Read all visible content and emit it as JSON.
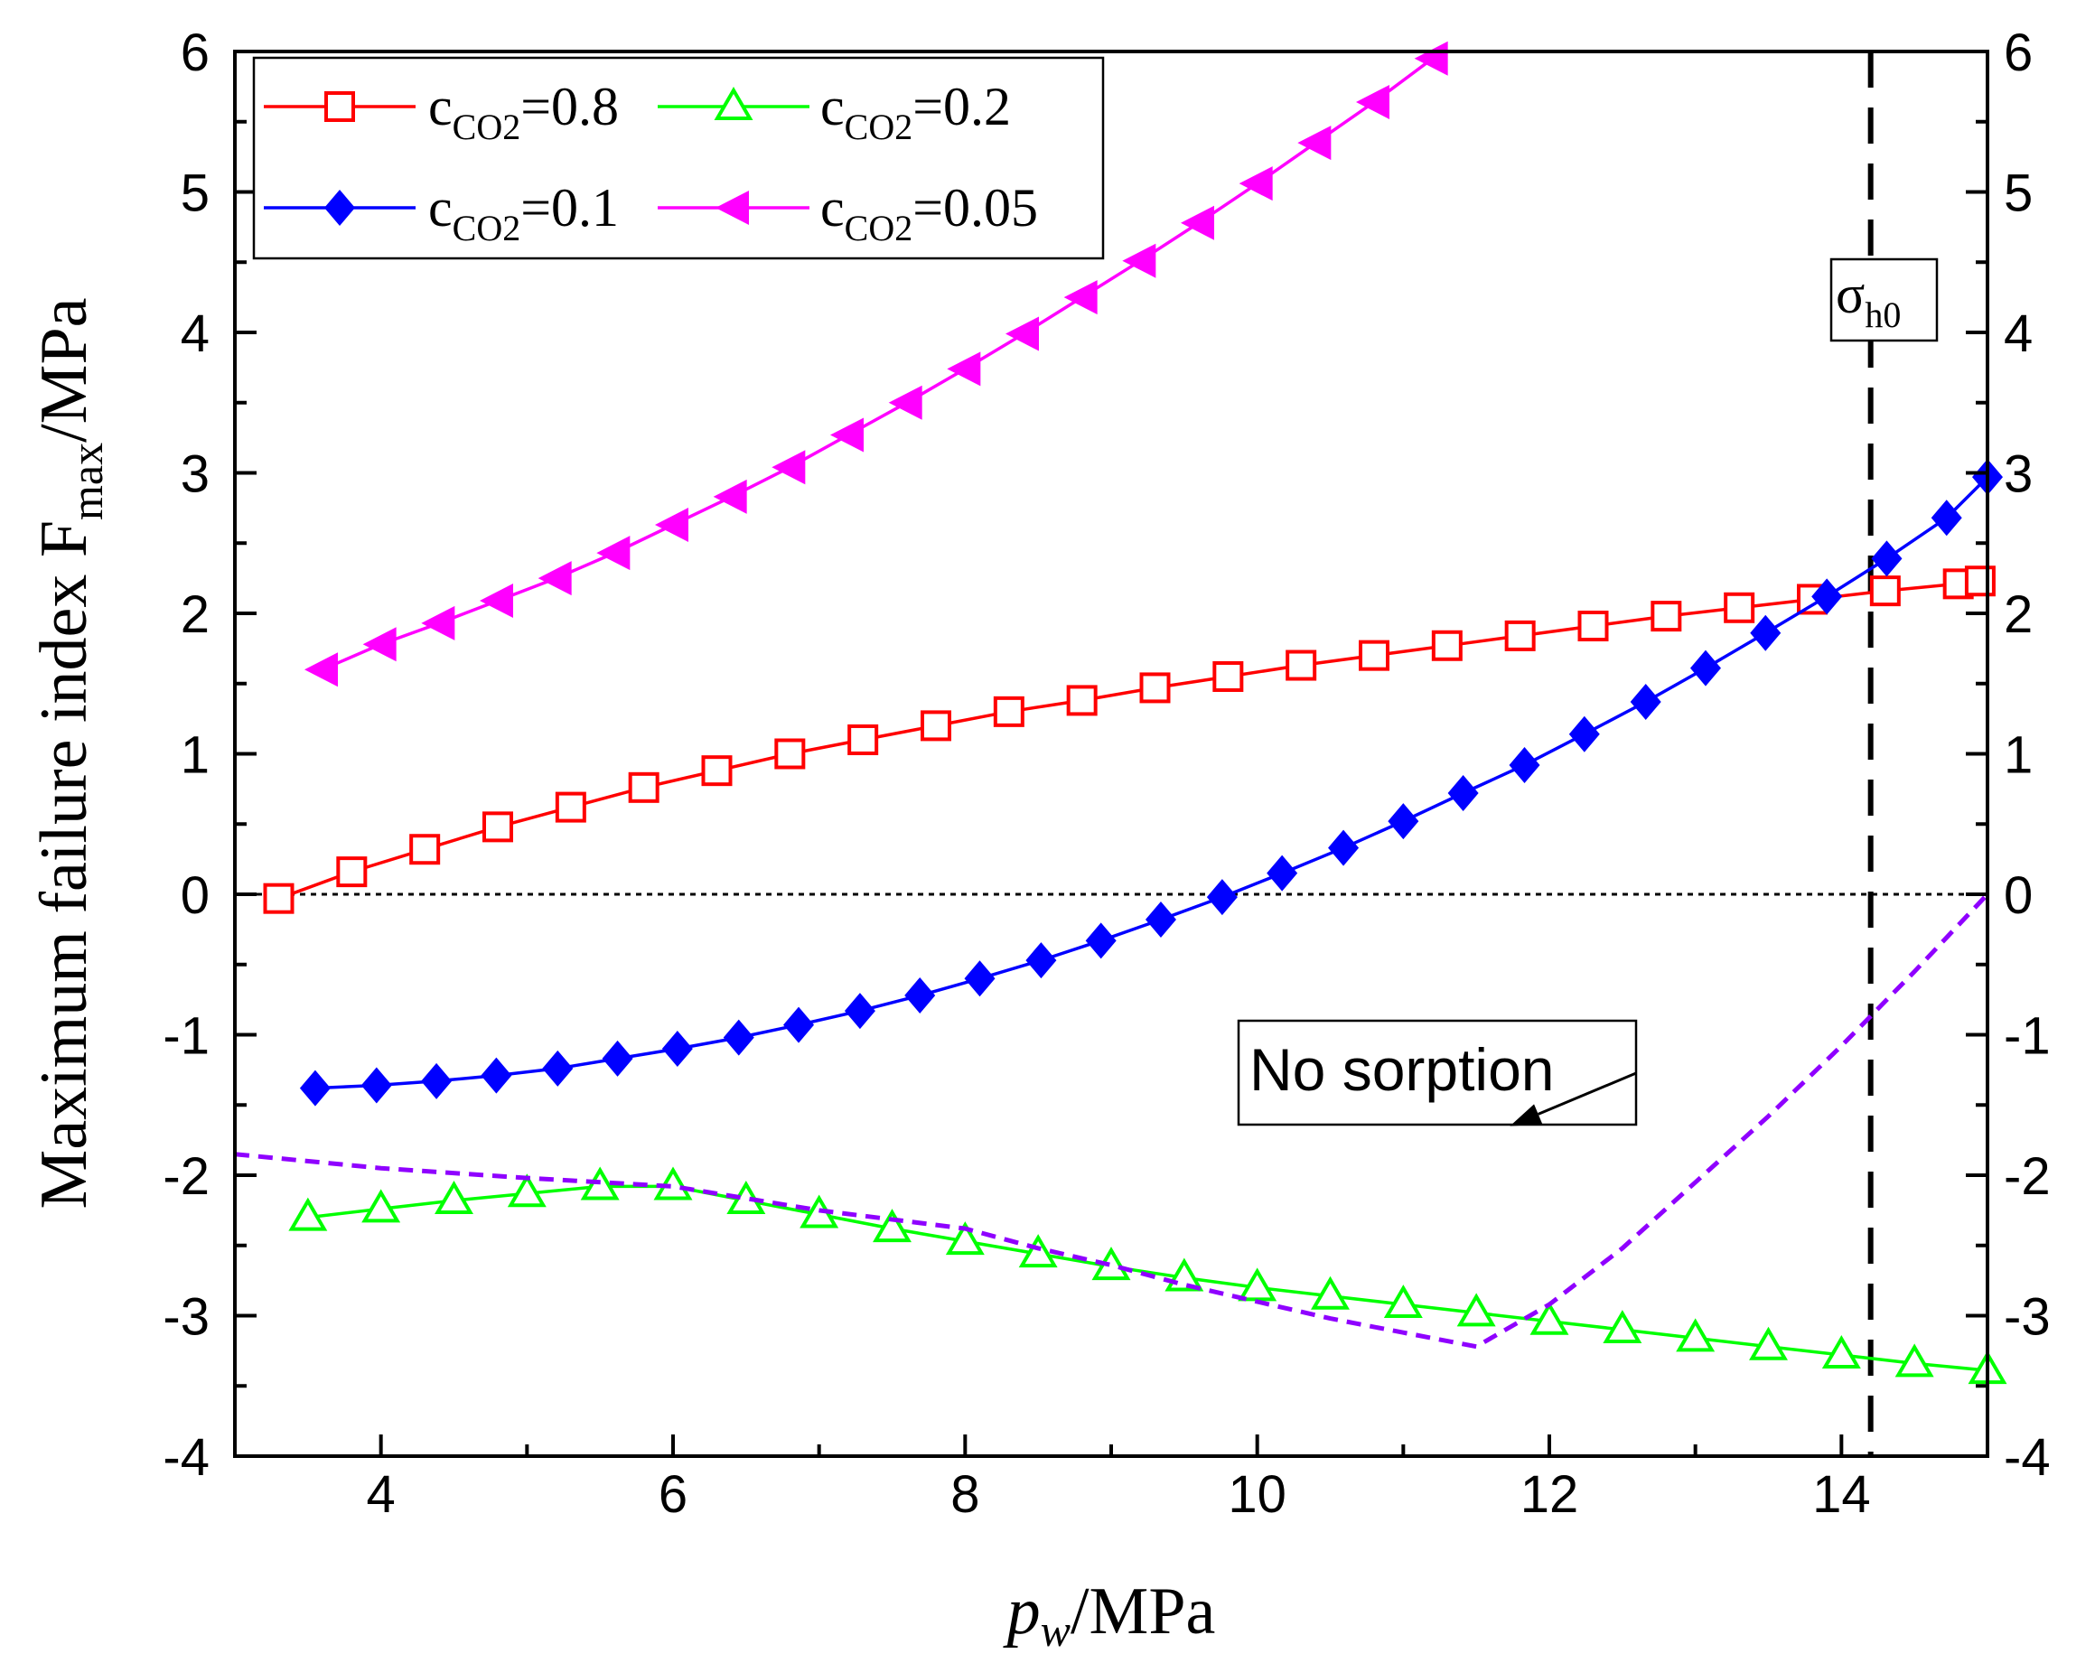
{
  "chart_data": {
    "type": "line",
    "xlabel": {
      "italic": "p",
      "sub": "w",
      "rest": "/MPa"
    },
    "ylabel": {
      "pre": "Maximum failure index F",
      "sub": "max",
      "post": "/MPa"
    },
    "xlim": [
      3,
      15
    ],
    "ylim": [
      -4,
      6
    ],
    "x_ticks": [
      4,
      6,
      8,
      10,
      12,
      14
    ],
    "y_ticks": [
      -4,
      -3,
      -2,
      -1,
      0,
      1,
      2,
      3,
      4,
      5,
      6
    ],
    "y_right_ticks": [
      -4,
      -3,
      -2,
      -1,
      0,
      1,
      2,
      3,
      4,
      5,
      6
    ],
    "zero_line": 0,
    "vline": {
      "x": 14.2,
      "label_main": "σ",
      "label_sub": "h0"
    },
    "series": [
      {
        "name": "c_CO2=0.8",
        "legend_main": "c",
        "legend_sub": "CO2",
        "legend_value": "=0.8",
        "color": "#ff0000",
        "marker": "square-open",
        "x": [
          3.3,
          3.8,
          4.3,
          4.8,
          5.3,
          5.8,
          6.3,
          6.8,
          7.3,
          7.8,
          8.3,
          8.8,
          9.3,
          9.8,
          10.3,
          10.8,
          11.3,
          11.8,
          12.3,
          12.8,
          13.3,
          13.8,
          14.3,
          14.8,
          14.95
        ],
        "y": [
          -0.03,
          0.16,
          0.32,
          0.48,
          0.62,
          0.76,
          0.88,
          1.0,
          1.1,
          1.2,
          1.3,
          1.38,
          1.47,
          1.55,
          1.63,
          1.7,
          1.77,
          1.84,
          1.91,
          1.98,
          2.04,
          2.1,
          2.16,
          2.21,
          2.23
        ]
      },
      {
        "name": "c_CO2=0.2",
        "legend_main": "c",
        "legend_sub": "CO2",
        "legend_value": "=0.2",
        "color": "#00ff00",
        "marker": "triangle-open",
        "x": [
          3.5,
          4.0,
          4.5,
          5.0,
          5.5,
          6.0,
          6.5,
          7.0,
          7.5,
          8.0,
          8.5,
          9.0,
          9.5,
          10.0,
          10.5,
          11.0,
          11.5,
          12.0,
          12.5,
          13.0,
          13.5,
          14.0,
          14.5,
          15.0
        ],
        "y": [
          -2.3,
          -2.24,
          -2.18,
          -2.13,
          -2.08,
          -2.08,
          -2.18,
          -2.28,
          -2.38,
          -2.47,
          -2.56,
          -2.65,
          -2.73,
          -2.8,
          -2.86,
          -2.92,
          -2.98,
          -3.04,
          -3.1,
          -3.16,
          -3.22,
          -3.28,
          -3.34,
          -3.39
        ]
      },
      {
        "name": "c_CO2=0.1",
        "legend_main": "c",
        "legend_sub": "CO2",
        "legend_value": "=0.1",
        "color": "#0000ff",
        "marker": "diamond-filled",
        "x": [
          3.55,
          3.97,
          4.38,
          4.79,
          5.21,
          5.62,
          6.03,
          6.45,
          6.86,
          7.28,
          7.69,
          8.1,
          8.52,
          8.93,
          9.34,
          9.76,
          10.17,
          10.59,
          11.0,
          11.41,
          11.83,
          12.24,
          12.66,
          13.07,
          13.48,
          13.9,
          14.31,
          14.72,
          15.0
        ],
        "y": [
          -1.38,
          -1.36,
          -1.33,
          -1.29,
          -1.24,
          -1.17,
          -1.1,
          -1.02,
          -0.93,
          -0.83,
          -0.72,
          -0.6,
          -0.47,
          -0.33,
          -0.18,
          -0.02,
          0.15,
          0.33,
          0.52,
          0.72,
          0.92,
          1.14,
          1.37,
          1.61,
          1.86,
          2.12,
          2.39,
          2.68,
          2.97
        ]
      },
      {
        "name": "c_CO2=0.05",
        "legend_main": "c",
        "legend_sub": "CO2",
        "legend_value": "=0.05",
        "color": "#ff00ff",
        "marker": "triangle-left-filled",
        "x": [
          3.6,
          4.0,
          4.4,
          4.8,
          5.2,
          5.6,
          6.0,
          6.4,
          6.8,
          7.2,
          7.6,
          8.0,
          8.4,
          8.8,
          9.2,
          9.6,
          10.0,
          10.4,
          10.8,
          11.2
        ],
        "y": [
          1.6,
          1.78,
          1.93,
          2.09,
          2.25,
          2.43,
          2.63,
          2.83,
          3.04,
          3.27,
          3.5,
          3.74,
          3.99,
          4.25,
          4.51,
          4.78,
          5.06,
          5.35,
          5.64,
          5.95
        ]
      },
      {
        "name": "No sorption",
        "color": "#8f00ff",
        "marker": "none",
        "dashed": true,
        "x": [
          3.0,
          4.0,
          5.0,
          6.0,
          7.0,
          8.0,
          8.5,
          9.0,
          9.5,
          10.0,
          10.5,
          11.0,
          11.5,
          12.0,
          12.5,
          13.0,
          13.5,
          14.0,
          14.5,
          15.0
        ],
        "y": [
          -1.85,
          -1.95,
          -2.02,
          -2.08,
          -2.25,
          -2.38,
          -2.52,
          -2.64,
          -2.78,
          -2.9,
          -3.02,
          -3.12,
          -3.22,
          -2.92,
          -2.52,
          -2.05,
          -1.58,
          -1.08,
          -0.55,
          0.0
        ]
      }
    ],
    "annotation": {
      "text": "No sorption",
      "target_x": 11.73,
      "target_y": -1.65
    }
  }
}
